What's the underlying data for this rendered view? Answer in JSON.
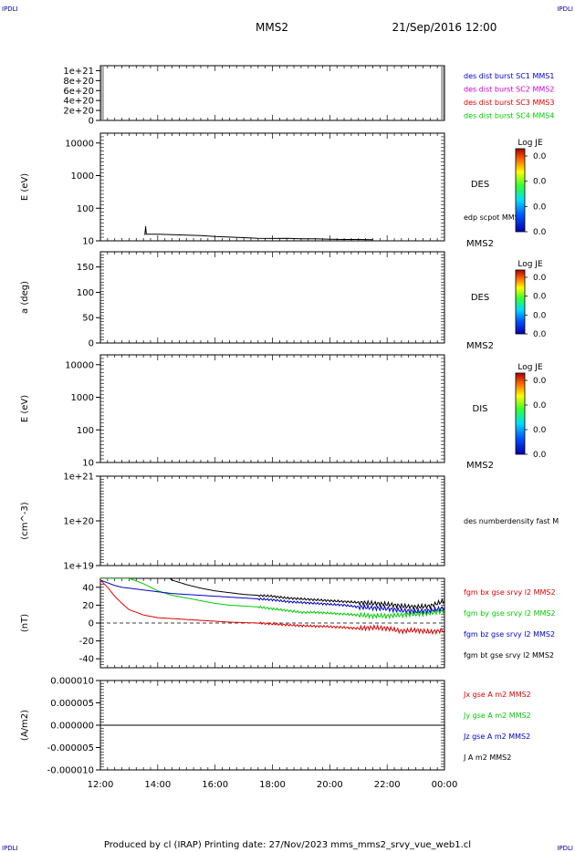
{
  "header": {
    "corner_tl": "IPDLI",
    "corner_tr": "IPDLI",
    "corner_bl": "IPDLI",
    "corner_br": "IPDLI",
    "spacecraft": "MMS2",
    "datetime": "21/Sep/2016 12:00"
  },
  "footer": {
    "text": "Produced by cl (IRAP)   Printing date: 27/Nov/2023   mms_mms2_srvy_vue_web1.cl"
  },
  "x_axis": {
    "ticks": [
      "12:00",
      "14:00",
      "16:00",
      "18:00",
      "20:00",
      "22:00",
      "00:00"
    ]
  },
  "colors": {
    "blue": "#0000cc",
    "magenta": "#cc00cc",
    "red": "#dd0000",
    "green": "#00cc00",
    "black": "#000000"
  },
  "colorbar": {
    "title": "Log JE",
    "values": [
      "0.0",
      "0.0",
      "0.0",
      "0.0"
    ]
  },
  "chart_data": [
    {
      "type": "line",
      "ylabel": "",
      "yticks": [
        "1e+21",
        "8e+20",
        "6e+20",
        "4e+20",
        "2e+20",
        "0"
      ],
      "ylim": [
        0,
        1.1e+21
      ],
      "legend": [
        "des dist burst SC1 MMS1",
        "des dist burst SC2 MMS2",
        "des dist burst SC3 MMS3",
        "des dist burst SC4 MMS4"
      ],
      "legend_colors": [
        "#0000cc",
        "#cc00cc",
        "#dd0000",
        "#00cc00"
      ],
      "series": []
    },
    {
      "type": "heatmap",
      "ylabel": "E (eV)",
      "yscale": "log",
      "yticks": [
        "10000",
        "1000",
        "100",
        "10"
      ],
      "ylim": [
        10,
        20000
      ],
      "label": "DES",
      "overlay_label": "edp scpot MMS2",
      "bottom_label": "MMS2",
      "overlay": {
        "name": "edp scpot MMS2",
        "x_hours": [
          1.55,
          1.58,
          1.6,
          2.0,
          2.5,
          3.0,
          3.5,
          4.0,
          4.5,
          5.0,
          5.5,
          6.0,
          6.5,
          7.0,
          7.5,
          8.0,
          8.5,
          9.0,
          9.5
        ],
        "y": [
          15,
          28,
          16,
          16,
          15.5,
          15,
          14.5,
          13.5,
          13,
          12.5,
          12,
          11.8,
          12,
          11.5,
          11.5,
          11.2,
          11,
          11,
          10.8
        ]
      }
    },
    {
      "type": "heatmap",
      "ylabel": "a (deg)",
      "yticks": [
        "150",
        "100",
        "50",
        "0"
      ],
      "ylim": [
        0,
        180
      ],
      "label": "DES",
      "bottom_label": "MMS2"
    },
    {
      "type": "heatmap",
      "ylabel": "E (eV)",
      "yscale": "log",
      "yticks": [
        "10000",
        "1000",
        "100",
        "10"
      ],
      "ylim": [
        10,
        20000
      ],
      "label": "DIS",
      "bottom_label": "MMS2"
    },
    {
      "type": "line",
      "ylabel": "(cm^-3)",
      "yscale": "log",
      "yticks": [
        "1e+21",
        "1e+20",
        "1e+19"
      ],
      "ylim": [
        1e+19,
        1e+21
      ],
      "legend": [
        "des numberdensity fast M"
      ],
      "legend_colors": [
        "#000000"
      ],
      "series": []
    },
    {
      "type": "line",
      "ylabel": "(nT)",
      "yticks": [
        "40",
        "20",
        "0",
        "-20",
        "-40"
      ],
      "ylim": [
        -50,
        50
      ],
      "legend": [
        "fgm bx gse srvy l2 MMS2",
        "fgm by gse srvy l2 MMS2",
        "fgm bz gse srvy l2 MMS2",
        "fgm bt gse srvy l2 MMS2"
      ],
      "legend_colors": [
        "#dd0000",
        "#00cc00",
        "#0000cc",
        "#000000"
      ],
      "x_hours": [
        0,
        0.25,
        0.5,
        0.75,
        1,
        1.5,
        2,
        2.5,
        3,
        3.5,
        4,
        4.5,
        5,
        5.5,
        6,
        6.5,
        7,
        7.5,
        8,
        8.5,
        9,
        9.5,
        10,
        10.5,
        11,
        11.5,
        12
      ],
      "series": [
        {
          "name": "fgm bx gse srvy l2 MMS2",
          "values": [
            48,
            40,
            30,
            22,
            15,
            9,
            6,
            5,
            4,
            3,
            2,
            1,
            0.5,
            0,
            -1,
            -2,
            -3,
            -3.5,
            -4,
            -5,
            -6,
            -5,
            -6,
            -9,
            -8,
            -10,
            -8
          ]
        },
        {
          "name": "fgm by gse srvy l2 MMS2",
          "values": [
            50,
            50,
            50,
            50,
            50,
            44,
            36,
            31,
            28,
            25,
            22,
            20,
            19,
            18,
            16,
            14,
            12,
            12,
            11,
            10,
            9,
            8,
            8,
            9,
            10,
            11,
            14
          ]
        },
        {
          "name": "fgm bz gse srvy l2 MMS2",
          "values": [
            48,
            45,
            42,
            40,
            39,
            37,
            35,
            33,
            32,
            31,
            30,
            29,
            28,
            27,
            26,
            24,
            23,
            22,
            21,
            20,
            18,
            17,
            16,
            14,
            13,
            14,
            17
          ]
        },
        {
          "name": "fgm bt gse srvy l2 MMS2",
          "values": [
            60,
            60,
            60,
            60,
            60,
            60,
            60,
            48,
            43,
            39,
            36,
            34,
            32,
            31,
            30,
            28,
            27,
            26,
            25,
            24,
            23,
            22,
            21,
            19,
            18,
            19,
            25
          ]
        }
      ]
    },
    {
      "type": "line",
      "ylabel": "(A/m2)",
      "yticks": [
        "0.000010",
        "0.000005",
        "0.000000",
        "-0.000005",
        "-0.000010"
      ],
      "ylim": [
        -1e-05,
        1e-05
      ],
      "legend": [
        "Jx gse A m2 MMS2",
        "Jy gse A m2 MMS2",
        "Jz gse A m2 MMS2",
        "J A m2 MMS2"
      ],
      "legend_colors": [
        "#dd0000",
        "#00cc00",
        "#0000cc",
        "#000000"
      ],
      "x_hours": [
        0,
        12
      ],
      "series": [
        {
          "name": "J A m2 MMS2",
          "values": [
            0,
            0
          ]
        }
      ]
    }
  ]
}
